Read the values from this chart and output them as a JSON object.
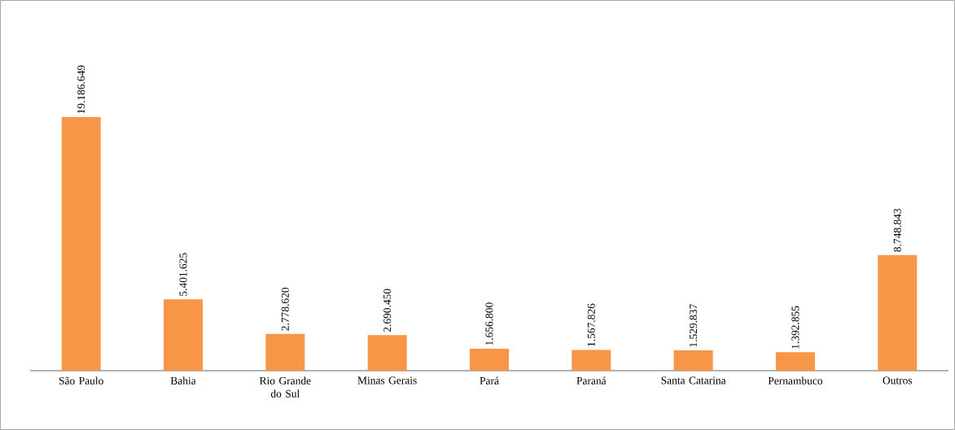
{
  "chart_data": {
    "type": "bar",
    "categories": [
      "São Paulo",
      "Bahia",
      "Rio Grande do Sul",
      "Minas Gerais",
      "Pará",
      "Paraná",
      "Santa Catarina",
      "Pernambuco",
      "Outros"
    ],
    "values": [
      19186649,
      5401625,
      2778620,
      2690450,
      1656800,
      1567826,
      1529837,
      1392855,
      8748843
    ],
    "value_labels": [
      "19.186.649",
      "5.401.625",
      "2.778.620",
      "2.690.450",
      "1.656.800",
      "1.567.826",
      "1.529.837",
      "1.392.855",
      "8.748.843"
    ],
    "color": "#f79646"
  }
}
